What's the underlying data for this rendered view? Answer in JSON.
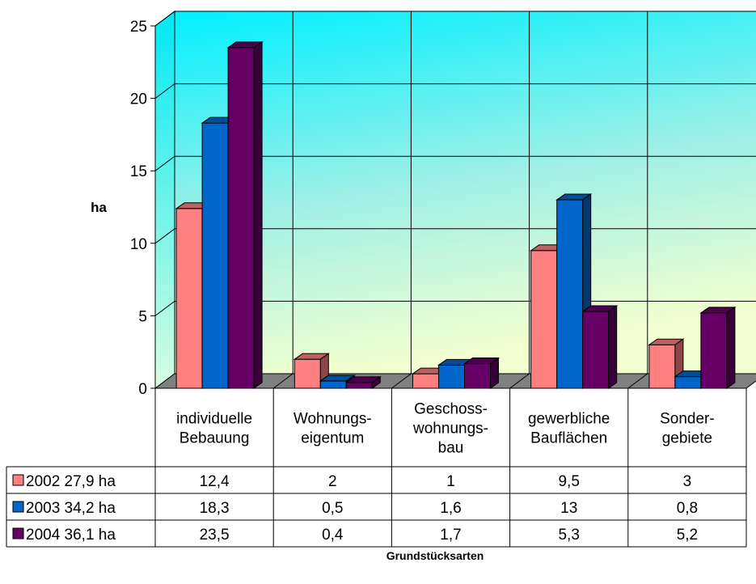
{
  "chart_data": {
    "type": "bar",
    "ylabel": "ha",
    "xlabel": "Grundstücksarten",
    "ylim": [
      0,
      25
    ],
    "yticks": [
      "0",
      "5",
      "10",
      "15",
      "20",
      "25"
    ],
    "grid": true,
    "categories": [
      [
        "individuelle",
        "Bebauung"
      ],
      [
        "Wohnungs-",
        "eigentum"
      ],
      [
        "Geschoss-",
        "wohnungs-",
        "bau"
      ],
      [
        "gewerbliche",
        "Bauflächen"
      ],
      [
        "Sonder-",
        "gebiete"
      ]
    ],
    "series": [
      {
        "name": "2002  27,9 ha",
        "color": "#ff8080",
        "values": [
          12.4,
          2,
          1,
          9.5,
          3
        ],
        "labels": [
          "12,4",
          "2",
          "1",
          "9,5",
          "3"
        ]
      },
      {
        "name": "2003  34,2 ha",
        "color": "#0066cc",
        "values": [
          18.3,
          0.5,
          1.6,
          13,
          0.8
        ],
        "labels": [
          "18,3",
          "0,5",
          "1,6",
          "13",
          "0,8"
        ]
      },
      {
        "name": "2004  36,1 ha",
        "color": "#660066",
        "values": [
          23.5,
          0.4,
          1.7,
          5.3,
          5.2
        ],
        "labels": [
          "23,5",
          "0,4",
          "1,7",
          "5,3",
          "5,2"
        ]
      }
    ]
  }
}
